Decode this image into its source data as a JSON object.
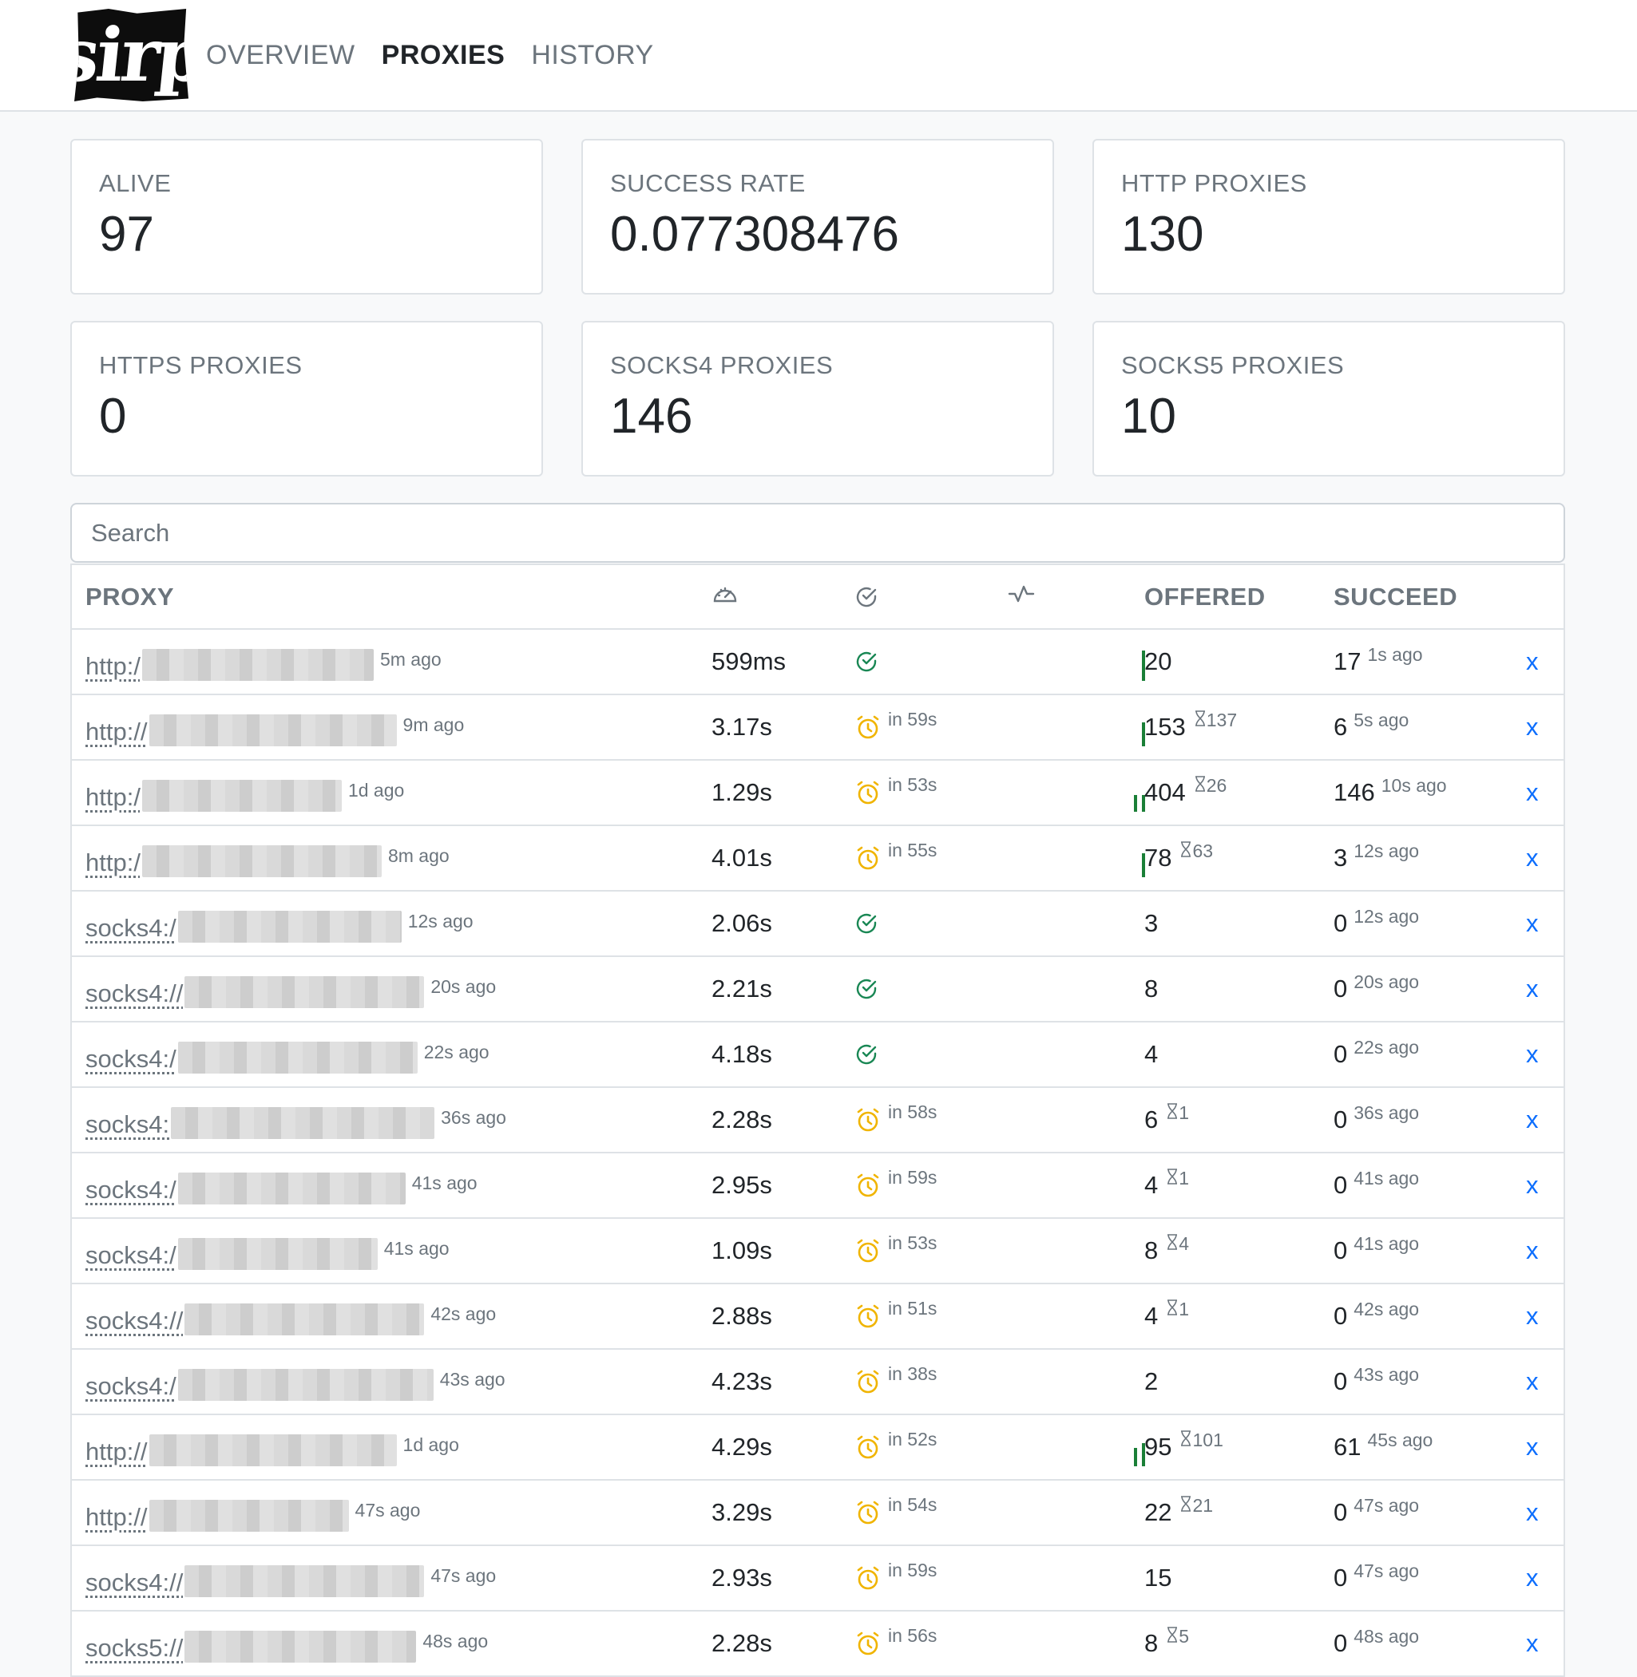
{
  "nav": {
    "logo_text": "sirp",
    "links": [
      "OVERVIEW",
      "PROXIES",
      "HISTORY"
    ]
  },
  "stats": [
    {
      "label": "ALIVE",
      "value": "97"
    },
    {
      "label": "SUCCESS RATE",
      "value": "0.077308476"
    },
    {
      "label": "HTTP PROXIES",
      "value": "130"
    },
    {
      "label": "HTTPS PROXIES",
      "value": "0"
    },
    {
      "label": "SOCKS4 PROXIES",
      "value": "146"
    },
    {
      "label": "SOCKS5 PROXIES",
      "value": "10"
    }
  ],
  "search": {
    "placeholder": "Search"
  },
  "table": {
    "headers": {
      "proxy": "PROXY",
      "speed_icon": "speedometer-icon",
      "check_icon": "check-circle-icon",
      "activity_icon": "activity-icon",
      "offered": "OFFERED",
      "succeed": "SUCCEED"
    },
    "delete_label": "x",
    "status_colors": {
      "ok": "#198754",
      "wait": "#f0b400",
      "link": "#0d6efd",
      "spark": "#1a7f37"
    },
    "rows": [
      {
        "scheme": "http:/",
        "seen": "5m ago",
        "speed": "599ms",
        "status": "ok",
        "next": "",
        "offered": "20",
        "offered_pending": "",
        "succeed": "17",
        "succeed_ago": "1s ago",
        "spark": [
          1
        ]
      },
      {
        "scheme": "http://",
        "seen": "9m ago",
        "speed": "3.17s",
        "status": "wait",
        "next": "in 59s",
        "offered": "153",
        "offered_pending": "137",
        "succeed": "6",
        "succeed_ago": "5s ago",
        "spark": [
          0.8
        ]
      },
      {
        "scheme": "http:/",
        "seen": "1d ago",
        "speed": "1.29s",
        "status": "wait",
        "next": "in 53s",
        "offered": "404",
        "offered_pending": "26",
        "succeed": "146",
        "succeed_ago": "10s ago",
        "spark": [
          0.55,
          0.55
        ]
      },
      {
        "scheme": "http:/",
        "seen": "8m ago",
        "speed": "4.01s",
        "status": "wait",
        "next": "in 55s",
        "offered": "78",
        "offered_pending": "63",
        "succeed": "3",
        "succeed_ago": "12s ago",
        "spark": [
          0.8
        ]
      },
      {
        "scheme": "socks4:/",
        "seen": "12s ago",
        "speed": "2.06s",
        "status": "ok",
        "next": "",
        "offered": "3",
        "offered_pending": "",
        "succeed": "0",
        "succeed_ago": "12s ago",
        "spark": []
      },
      {
        "scheme": "socks4://",
        "seen": "20s ago",
        "speed": "2.21s",
        "status": "ok",
        "next": "",
        "offered": "8",
        "offered_pending": "",
        "succeed": "0",
        "succeed_ago": "20s ago",
        "spark": []
      },
      {
        "scheme": "socks4:/",
        "seen": "22s ago",
        "speed": "4.18s",
        "status": "ok",
        "next": "",
        "offered": "4",
        "offered_pending": "",
        "succeed": "0",
        "succeed_ago": "22s ago",
        "spark": []
      },
      {
        "scheme": "socks4:",
        "seen": "36s ago",
        "speed": "2.28s",
        "status": "wait",
        "next": "in 58s",
        "offered": "6",
        "offered_pending": "1",
        "succeed": "0",
        "succeed_ago": "36s ago",
        "spark": []
      },
      {
        "scheme": "socks4:/",
        "seen": "41s ago",
        "speed": "2.95s",
        "status": "wait",
        "next": "in 59s",
        "offered": "4",
        "offered_pending": "1",
        "succeed": "0",
        "succeed_ago": "41s ago",
        "spark": []
      },
      {
        "scheme": "socks4:/",
        "seen": "41s ago",
        "speed": "1.09s",
        "status": "wait",
        "next": "in 53s",
        "offered": "8",
        "offered_pending": "4",
        "succeed": "0",
        "succeed_ago": "41s ago",
        "spark": []
      },
      {
        "scheme": "socks4://",
        "seen": "42s ago",
        "speed": "2.88s",
        "status": "wait",
        "next": "in 51s",
        "offered": "4",
        "offered_pending": "1",
        "succeed": "0",
        "succeed_ago": "42s ago",
        "spark": []
      },
      {
        "scheme": "socks4:/",
        "seen": "43s ago",
        "speed": "4.23s",
        "status": "wait",
        "next": "in 38s",
        "offered": "2",
        "offered_pending": "",
        "succeed": "0",
        "succeed_ago": "43s ago",
        "spark": []
      },
      {
        "scheme": "http://",
        "seen": "1d ago",
        "speed": "4.29s",
        "status": "wait",
        "next": "in 52s",
        "offered": "95",
        "offered_pending": "101",
        "succeed": "61",
        "succeed_ago": "45s ago",
        "spark": [
          0.6,
          0.75
        ]
      },
      {
        "scheme": "http://",
        "seen": "47s ago",
        "speed": "3.29s",
        "status": "wait",
        "next": "in 54s",
        "offered": "22",
        "offered_pending": "21",
        "succeed": "0",
        "succeed_ago": "47s ago",
        "spark": []
      },
      {
        "scheme": "socks4://",
        "seen": "47s ago",
        "speed": "2.93s",
        "status": "wait",
        "next": "in 59s",
        "offered": "15",
        "offered_pending": "",
        "succeed": "0",
        "succeed_ago": "47s ago",
        "spark": []
      },
      {
        "scheme": "socks5://",
        "seen": "48s ago",
        "speed": "2.28s",
        "status": "wait",
        "next": "in 56s",
        "offered": "8",
        "offered_pending": "5",
        "succeed": "0",
        "succeed_ago": "48s ago",
        "spark": []
      }
    ]
  }
}
